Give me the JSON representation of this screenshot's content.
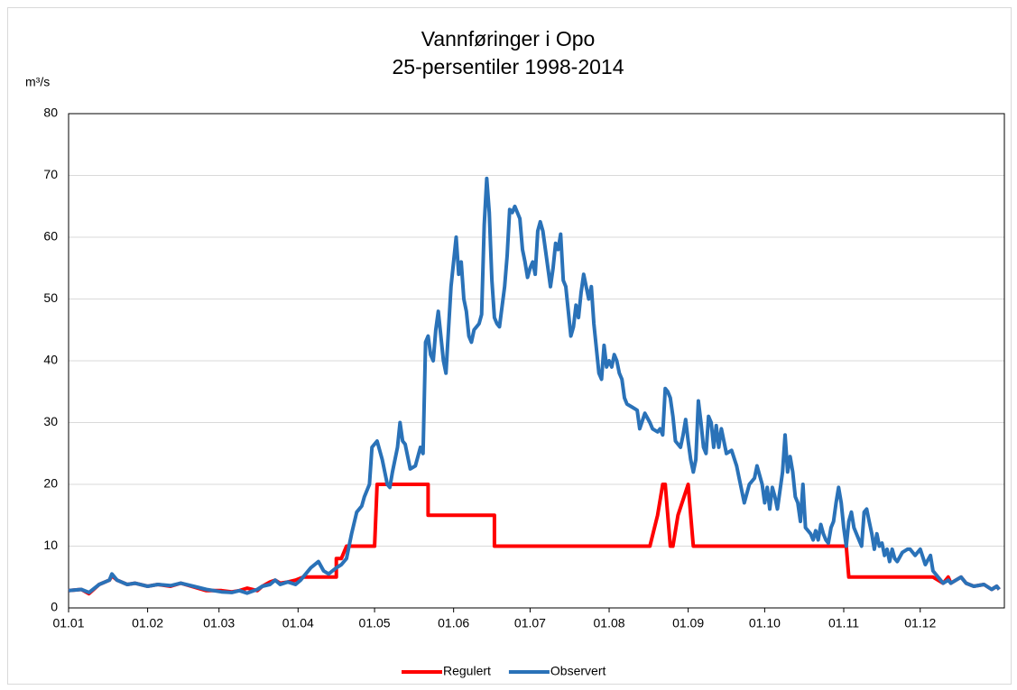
{
  "chart_data": {
    "type": "line",
    "title": "Vannføringer i Opo",
    "subtitle": "25-persentiler 1998-2014",
    "y_label": "m³/s",
    "xlim": [
      1,
      368
    ],
    "xticks": [
      {
        "value": 1,
        "label": "01.01"
      },
      {
        "value": 32,
        "label": "01.02"
      },
      {
        "value": 60,
        "label": "01.03"
      },
      {
        "value": 91,
        "label": "01.04"
      },
      {
        "value": 121,
        "label": "01.05"
      },
      {
        "value": 152,
        "label": "01.06"
      },
      {
        "value": 182,
        "label": "01.07"
      },
      {
        "value": 213,
        "label": "01.08"
      },
      {
        "value": 244,
        "label": "01.09"
      },
      {
        "value": 274,
        "label": "01.10"
      },
      {
        "value": 305,
        "label": "01.11"
      },
      {
        "value": 335,
        "label": "01.12"
      }
    ],
    "ylim": [
      0,
      80
    ],
    "yticks": [
      0,
      10,
      20,
      30,
      40,
      50,
      60,
      70,
      80
    ],
    "grid": true,
    "legend": "bottom",
    "series": [
      {
        "name": "Regulert",
        "color": "#ff0000",
        "x": [
          1,
          6,
          9,
          13,
          17,
          18,
          20,
          24,
          27,
          32,
          36,
          41,
          45,
          50,
          55,
          61,
          65,
          68,
          71,
          75,
          77,
          80,
          82,
          84,
          87,
          90,
          93,
          106,
          106,
          108,
          110,
          121,
          122,
          142,
          142,
          168,
          168,
          229,
          232,
          234,
          235,
          237,
          238,
          240,
          244,
          245,
          246,
          306,
          307,
          340,
          342,
          344,
          346,
          347,
          349,
          351,
          353,
          356,
          360,
          363,
          365,
          366
        ],
        "values": [
          2.8,
          3,
          2.3,
          3.8,
          4.5,
          5.2,
          4.5,
          3.8,
          4,
          3.5,
          3.8,
          3.5,
          4,
          3.4,
          2.8,
          2.8,
          2.6,
          2.8,
          3.2,
          2.8,
          3.5,
          4.2,
          4.5,
          4,
          4.2,
          4.5,
          5,
          5,
          8,
          8,
          10,
          10,
          20,
          20,
          15,
          15,
          10,
          10,
          15,
          20,
          20,
          10,
          10,
          15,
          20,
          15,
          10,
          10,
          5,
          5,
          4.5,
          4,
          5,
          4,
          4.5,
          5,
          4,
          3.5,
          3.8,
          3,
          3.5,
          3
        ]
      },
      {
        "name": "Observert",
        "color": "#2a72b8",
        "x": [
          1,
          6,
          9,
          13,
          17,
          18,
          20,
          24,
          27,
          32,
          36,
          41,
          45,
          50,
          55,
          61,
          65,
          68,
          71,
          75,
          77,
          80,
          82,
          84,
          87,
          90,
          92,
          94,
          96,
          99,
          101,
          103,
          106,
          108,
          110,
          112,
          114,
          116,
          117,
          119,
          120,
          122,
          124,
          126,
          127,
          128,
          130,
          131,
          132,
          133,
          135,
          137,
          139,
          140,
          141,
          142,
          143,
          144,
          145,
          146,
          148,
          149,
          150,
          151,
          153,
          154,
          155,
          156,
          157,
          158,
          159,
          160,
          162,
          163,
          164,
          165,
          166,
          167,
          168,
          169,
          170,
          172,
          173,
          174,
          175,
          176,
          178,
          179,
          180,
          181,
          182,
          183,
          184,
          185,
          186,
          187,
          188,
          190,
          191,
          192,
          193,
          194,
          195,
          196,
          197,
          198,
          199,
          200,
          201,
          202,
          203,
          205,
          206,
          207,
          208,
          209,
          210,
          211,
          212,
          213,
          214,
          215,
          216,
          217,
          218,
          219,
          220,
          222,
          224,
          225,
          227,
          229,
          230,
          232,
          233,
          234,
          235,
          236,
          237,
          238,
          239,
          241,
          242,
          243,
          244,
          245,
          246,
          247,
          248,
          249,
          250,
          251,
          252,
          253,
          254,
          255,
          256,
          257,
          259,
          261,
          263,
          264,
          266,
          268,
          270,
          271,
          273,
          274,
          275,
          276,
          277,
          278,
          279,
          281,
          282,
          283,
          284,
          285,
          286,
          287,
          288,
          289,
          290,
          292,
          293,
          294,
          295,
          296,
          297,
          298,
          299,
          300,
          301,
          302,
          303,
          304,
          305,
          306,
          307,
          308,
          309,
          311,
          312,
          313,
          314,
          315,
          316,
          317,
          318,
          319,
          320,
          321,
          322,
          323,
          324,
          325,
          326,
          328,
          330,
          331,
          333,
          335,
          337,
          339,
          340,
          342,
          344,
          346,
          347,
          349,
          351,
          353,
          356,
          360,
          363,
          365,
          366
        ],
        "values": [
          2.8,
          3,
          2.5,
          3.8,
          4.5,
          5.5,
          4.5,
          3.8,
          4,
          3.5,
          3.8,
          3.6,
          4,
          3.5,
          3,
          2.6,
          2.5,
          2.8,
          2.4,
          3,
          3.5,
          3.8,
          4.5,
          3.8,
          4.2,
          3.8,
          4.5,
          5.5,
          6.5,
          7.5,
          6,
          5.5,
          6.5,
          7,
          8,
          12,
          15.5,
          16.5,
          18,
          20,
          26,
          27,
          24,
          20,
          19.5,
          22,
          26,
          30,
          27,
          26.5,
          22.5,
          23,
          26,
          25,
          43,
          44,
          41,
          40,
          45,
          48,
          40,
          38,
          45,
          52,
          60,
          54,
          56,
          50,
          48,
          44,
          43,
          45,
          46,
          47.5,
          62,
          69.5,
          64,
          53,
          47,
          46,
          45.5,
          52,
          57,
          64.5,
          64,
          65,
          63,
          58,
          56,
          53.5,
          55,
          56,
          54,
          61,
          62.5,
          61,
          58,
          52,
          55,
          59,
          58,
          60.5,
          53,
          52,
          48,
          44,
          45.5,
          49,
          47,
          51,
          54,
          50,
          52,
          46,
          42,
          38,
          37,
          42.5,
          39,
          40,
          39,
          41,
          40,
          38,
          37,
          34,
          33,
          32.5,
          32,
          29,
          31.5,
          30,
          29,
          28.5,
          29,
          28,
          35.5,
          35,
          34,
          31,
          27,
          26,
          28,
          30.5,
          27,
          24,
          22,
          24,
          33.5,
          30,
          26,
          25,
          31,
          30,
          26,
          29.5,
          26,
          29,
          25,
          25.5,
          23,
          21,
          17,
          20,
          21,
          23,
          20,
          17,
          19.5,
          16,
          19.5,
          18,
          16,
          22,
          28,
          22,
          24.5,
          22,
          18,
          17,
          14,
          20,
          13,
          12,
          11,
          12.5,
          11,
          13.5,
          12,
          11,
          10.5,
          13,
          14,
          17,
          19.5,
          17,
          13,
          10,
          14,
          15.5,
          13,
          11,
          10,
          15.5,
          16,
          14,
          12,
          9.5,
          12,
          10,
          10.5,
          8.5,
          9.5,
          7.5,
          9.5,
          8,
          7.5,
          9,
          9.5,
          9.5,
          8.5,
          9.5,
          7,
          8.5,
          6,
          5,
          4,
          4.5,
          4,
          4.5,
          5,
          4,
          3.5,
          3.8,
          3,
          3.5,
          3
        ]
      }
    ]
  }
}
